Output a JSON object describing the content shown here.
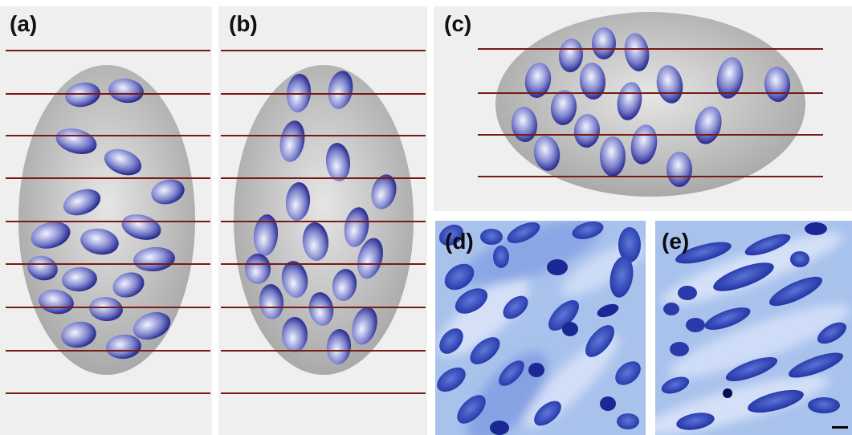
{
  "panels": {
    "a": {
      "label": "(a)"
    },
    "b": {
      "label": "(b)"
    },
    "c": {
      "label": "(c)"
    },
    "d": {
      "label": "(d)"
    },
    "e": {
      "label": "(e)"
    }
  },
  "colors": {
    "panel_background": "#efefef",
    "cell_body": "#b8b8b8",
    "nucleus_dark": "#0a0a7a",
    "nucleus_light": "#e8ecff",
    "section_line": "#7a1a14",
    "stain_background": "#a9c2ec",
    "stain_dark": "#1c2b9a",
    "scale_bar": "#000000"
  },
  "icons": {
    "scale_bar": "scale-bar-icon"
  }
}
